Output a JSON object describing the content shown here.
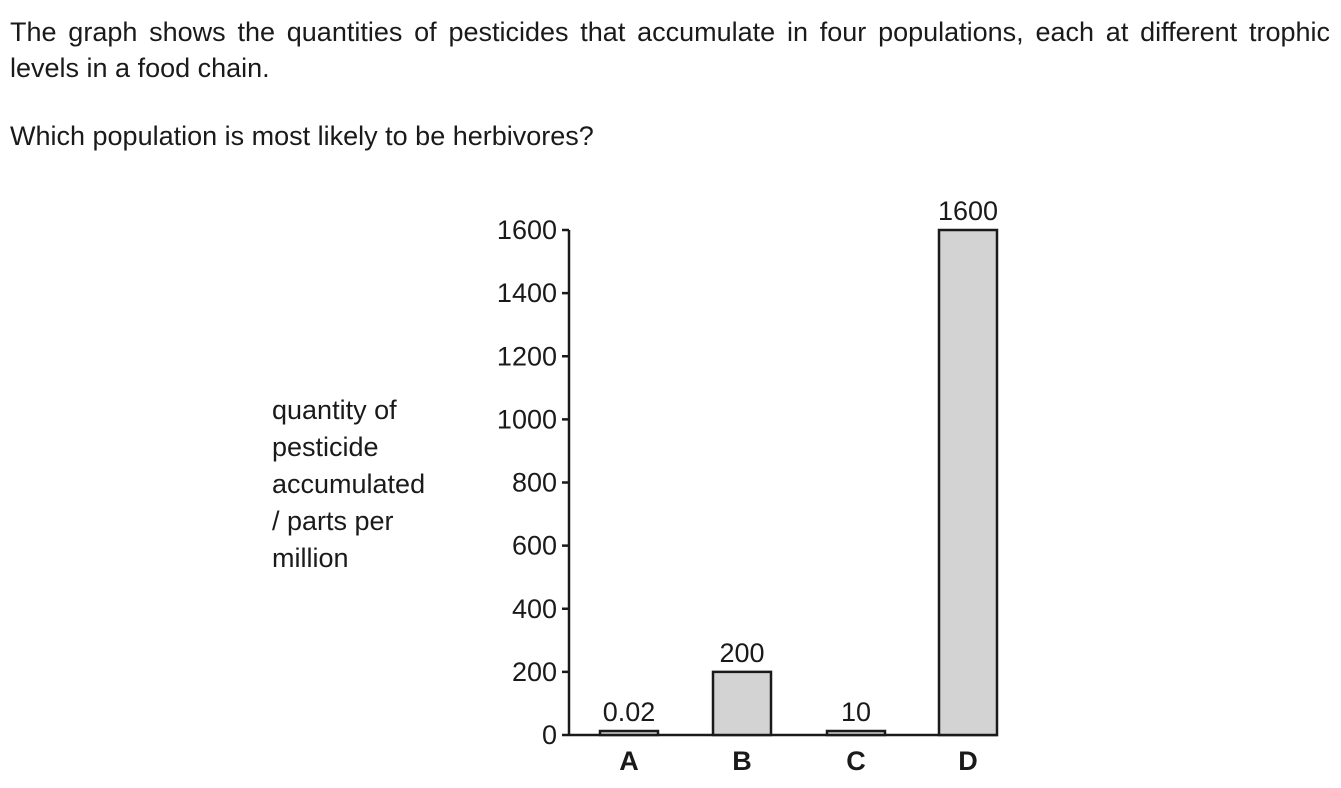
{
  "question": {
    "intro": "The graph shows the quantities of pesticides that accumulate in four populations, each at different trophic levels in a food chain.",
    "prompt": "Which population is most likely to be herbivores?"
  },
  "chart_data": {
    "type": "bar",
    "categories": [
      "A",
      "B",
      "C",
      "D"
    ],
    "values": [
      0.02,
      200,
      10,
      1600
    ],
    "data_labels": [
      "0.02",
      "200",
      "10",
      "1600"
    ],
    "ylabel": "quantity of\npesticide\naccumulated\n/ parts per\nmillion",
    "xlabel": "",
    "ylim": [
      0,
      1600
    ],
    "yticks": [
      0,
      200,
      400,
      600,
      800,
      1000,
      1200,
      1400,
      1600
    ],
    "grid": false,
    "bar_color": "#d3d3d3",
    "edge_color": "#1a1a1a"
  }
}
